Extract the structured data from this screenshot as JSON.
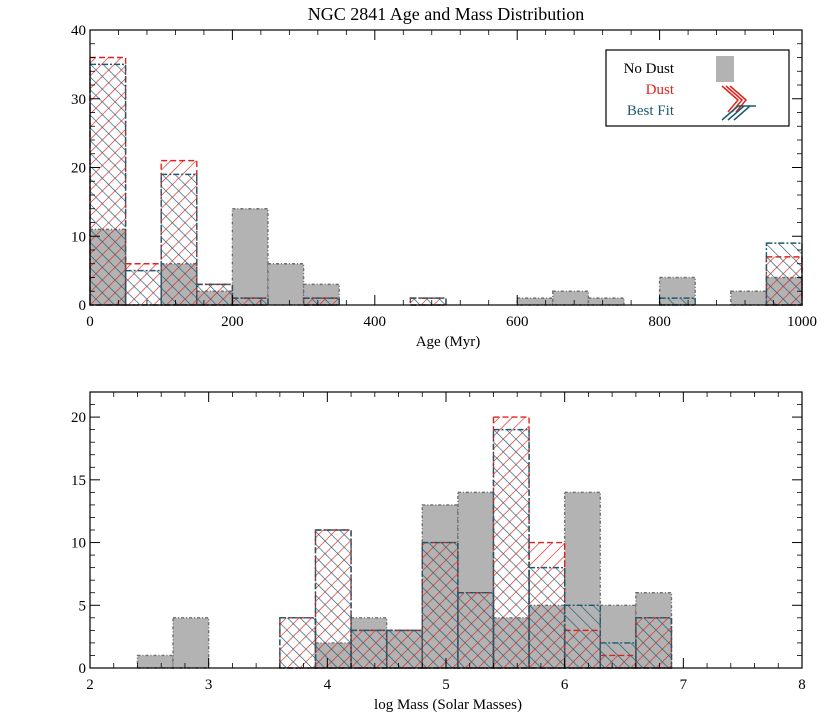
{
  "title": "NGC 2841 Age and Mass Distribution",
  "legend": {
    "items": [
      {
        "label": "No Dust",
        "color": "#b3b3b3",
        "style": "solid"
      },
      {
        "label": "Dust",
        "color": "#e0241b",
        "style": "hatch"
      },
      {
        "label": "Best Fit",
        "color": "#1d5a6e",
        "style": "hatch"
      }
    ]
  },
  "colors": {
    "nodust": "#b3b3b3",
    "nodust_edge": "#6e6e6e",
    "dust": "#e0241b",
    "bestfit": "#1d5a6e"
  },
  "chart_data": [
    {
      "type": "bar",
      "title": "NGC 2841 Age and Mass Distribution",
      "xlabel": "Age (Myr)",
      "ylabel": "",
      "xlim": [
        0,
        1000
      ],
      "ylim": [
        0,
        40
      ],
      "x_ticks": [
        "0",
        "200",
        "400",
        "600",
        "800",
        "1000"
      ],
      "y_ticks": [
        "0",
        "10",
        "20",
        "30",
        "40"
      ],
      "bin_width": 50,
      "bin_starts": [
        0,
        50,
        100,
        150,
        200,
        250,
        300,
        350,
        400,
        450,
        500,
        550,
        600,
        650,
        700,
        750,
        800,
        850,
        900,
        950
      ],
      "series": [
        {
          "name": "No Dust",
          "values": [
            11,
            0,
            6,
            2,
            14,
            6,
            3,
            0,
            0,
            0,
            0,
            0,
            1,
            2,
            1,
            0,
            4,
            0,
            2,
            4
          ]
        },
        {
          "name": "Dust",
          "values": [
            36,
            6,
            21,
            3,
            1,
            0,
            1,
            0,
            0,
            1,
            0,
            0,
            0,
            0,
            0,
            0,
            0,
            0,
            0,
            7
          ]
        },
        {
          "name": "Best Fit",
          "values": [
            35,
            5,
            19,
            3,
            1,
            0,
            1,
            0,
            0,
            1,
            0,
            0,
            0,
            0,
            0,
            0,
            1,
            0,
            0,
            9
          ]
        }
      ]
    },
    {
      "type": "bar",
      "title": "",
      "xlabel": "log Mass (Solar Masses)",
      "ylabel": "",
      "xlim": [
        2,
        8
      ],
      "ylim": [
        0,
        22
      ],
      "x_ticks": [
        "2",
        "3",
        "4",
        "5",
        "6",
        "7",
        "8"
      ],
      "y_ticks": [
        "0",
        "5",
        "10",
        "15",
        "20"
      ],
      "bin_width": 0.3,
      "bin_starts": [
        2.4,
        2.7,
        3.0,
        3.3,
        3.6,
        3.9,
        4.2,
        4.5,
        4.8,
        5.1,
        5.4,
        5.7,
        6.0,
        6.3,
        6.6,
        6.9
      ],
      "series": [
        {
          "name": "No Dust",
          "values": [
            1,
            4,
            0,
            0,
            0,
            2,
            4,
            3,
            13,
            14,
            4,
            5,
            14,
            5,
            6,
            0
          ]
        },
        {
          "name": "Dust",
          "values": [
            0,
            0,
            0,
            0,
            4,
            11,
            3,
            3,
            10,
            6,
            20,
            10,
            3,
            1,
            4,
            0
          ]
        },
        {
          "name": "Best Fit",
          "values": [
            0,
            0,
            0,
            0,
            4,
            11,
            3,
            3,
            10,
            6,
            19,
            8,
            5,
            2,
            4,
            0
          ]
        }
      ]
    }
  ]
}
